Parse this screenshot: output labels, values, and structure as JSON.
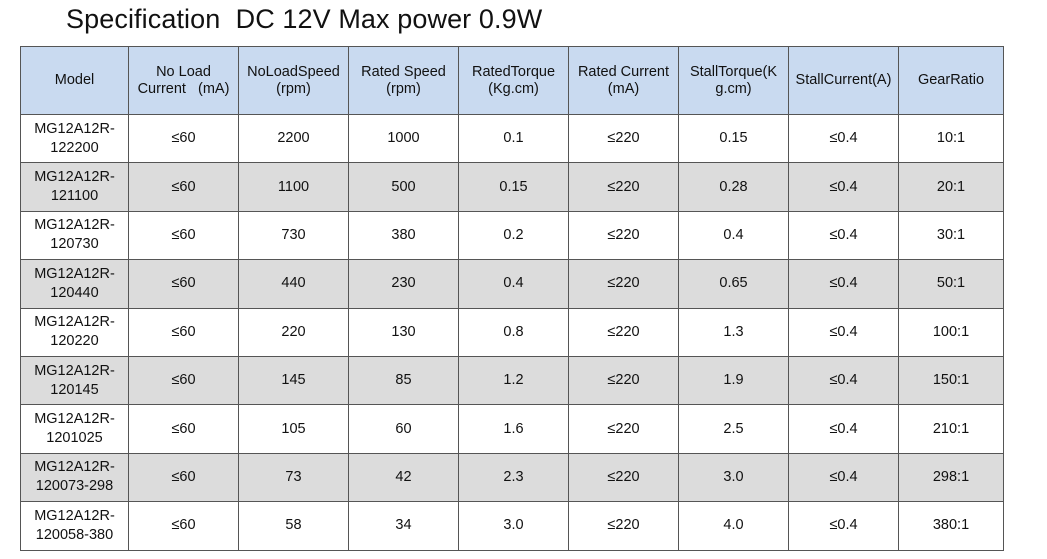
{
  "title": "Specification  DC 12V Max power 0.9W",
  "table": {
    "headers": [
      [
        "Model"
      ],
      [
        "No Load",
        "Current   (mA)"
      ],
      [
        "NoLoadSpeed",
        "(rpm)"
      ],
      [
        "Rated Speed",
        "(rpm)"
      ],
      [
        "RatedTorque",
        "(Kg.cm)"
      ],
      [
        "Rated Current",
        "(mA)"
      ],
      [
        "StallTorque(K",
        "g.cm)"
      ],
      [
        "StallCurrent(A)"
      ],
      [
        "GearRatio"
      ]
    ],
    "rows": [
      {
        "model": [
          "MG12A12R-",
          "122200"
        ],
        "no_load_current": "≤60",
        "no_load_speed": "2200",
        "rated_speed": "1000",
        "rated_torque": "0.1",
        "rated_current": "≤220",
        "stall_torque": "0.15",
        "stall_current": "≤0.4",
        "gear_ratio": "10:1"
      },
      {
        "model": [
          "MG12A12R-",
          "121100"
        ],
        "no_load_current": "≤60",
        "no_load_speed": "1100",
        "rated_speed": "500",
        "rated_torque": "0.15",
        "rated_current": "≤220",
        "stall_torque": "0.28",
        "stall_current": "≤0.4",
        "gear_ratio": "20:1"
      },
      {
        "model": [
          "MG12A12R-",
          "120730"
        ],
        "no_load_current": "≤60",
        "no_load_speed": "730",
        "rated_speed": "380",
        "rated_torque": "0.2",
        "rated_current": "≤220",
        "stall_torque": "0.4",
        "stall_current": "≤0.4",
        "gear_ratio": "30:1"
      },
      {
        "model": [
          "MG12A12R-",
          "120440"
        ],
        "no_load_current": "≤60",
        "no_load_speed": "440",
        "rated_speed": "230",
        "rated_torque": "0.4",
        "rated_current": "≤220",
        "stall_torque": "0.65",
        "stall_current": "≤0.4",
        "gear_ratio": "50:1"
      },
      {
        "model": [
          "MG12A12R-",
          "120220"
        ],
        "no_load_current": "≤60",
        "no_load_speed": "220",
        "rated_speed": "130",
        "rated_torque": "0.8",
        "rated_current": "≤220",
        "stall_torque": "1.3",
        "stall_current": "≤0.4",
        "gear_ratio": "100:1"
      },
      {
        "model": [
          "MG12A12R-",
          "120145"
        ],
        "no_load_current": "≤60",
        "no_load_speed": "145",
        "rated_speed": "85",
        "rated_torque": "1.2",
        "rated_current": "≤220",
        "stall_torque": "1.9",
        "stall_current": "≤0.4",
        "gear_ratio": "150:1"
      },
      {
        "model": [
          "MG12A12R-",
          "1201025"
        ],
        "no_load_current": "≤60",
        "no_load_speed": "105",
        "rated_speed": "60",
        "rated_torque": "1.6",
        "rated_current": "≤220",
        "stall_torque": "2.5",
        "stall_current": "≤0.4",
        "gear_ratio": "210:1"
      },
      {
        "model": [
          "MG12A12R-",
          "120073-298"
        ],
        "no_load_current": "≤60",
        "no_load_speed": "73",
        "rated_speed": "42",
        "rated_torque": "2.3",
        "rated_current": "≤220",
        "stall_torque": "3.0",
        "stall_current": "≤0.4",
        "gear_ratio": "298:1"
      },
      {
        "model": [
          "MG12A12R-",
          "120058-380"
        ],
        "no_load_current": "≤60",
        "no_load_speed": "58",
        "rated_speed": "34",
        "rated_torque": "3.0",
        "rated_current": "≤220",
        "stall_torque": "4.0",
        "stall_current": "≤0.4",
        "gear_ratio": "380:1"
      }
    ]
  },
  "colors": {
    "header_bg": "#c9daf0",
    "shaded_row_bg": "#dcdcdc",
    "border": "#555555"
  }
}
